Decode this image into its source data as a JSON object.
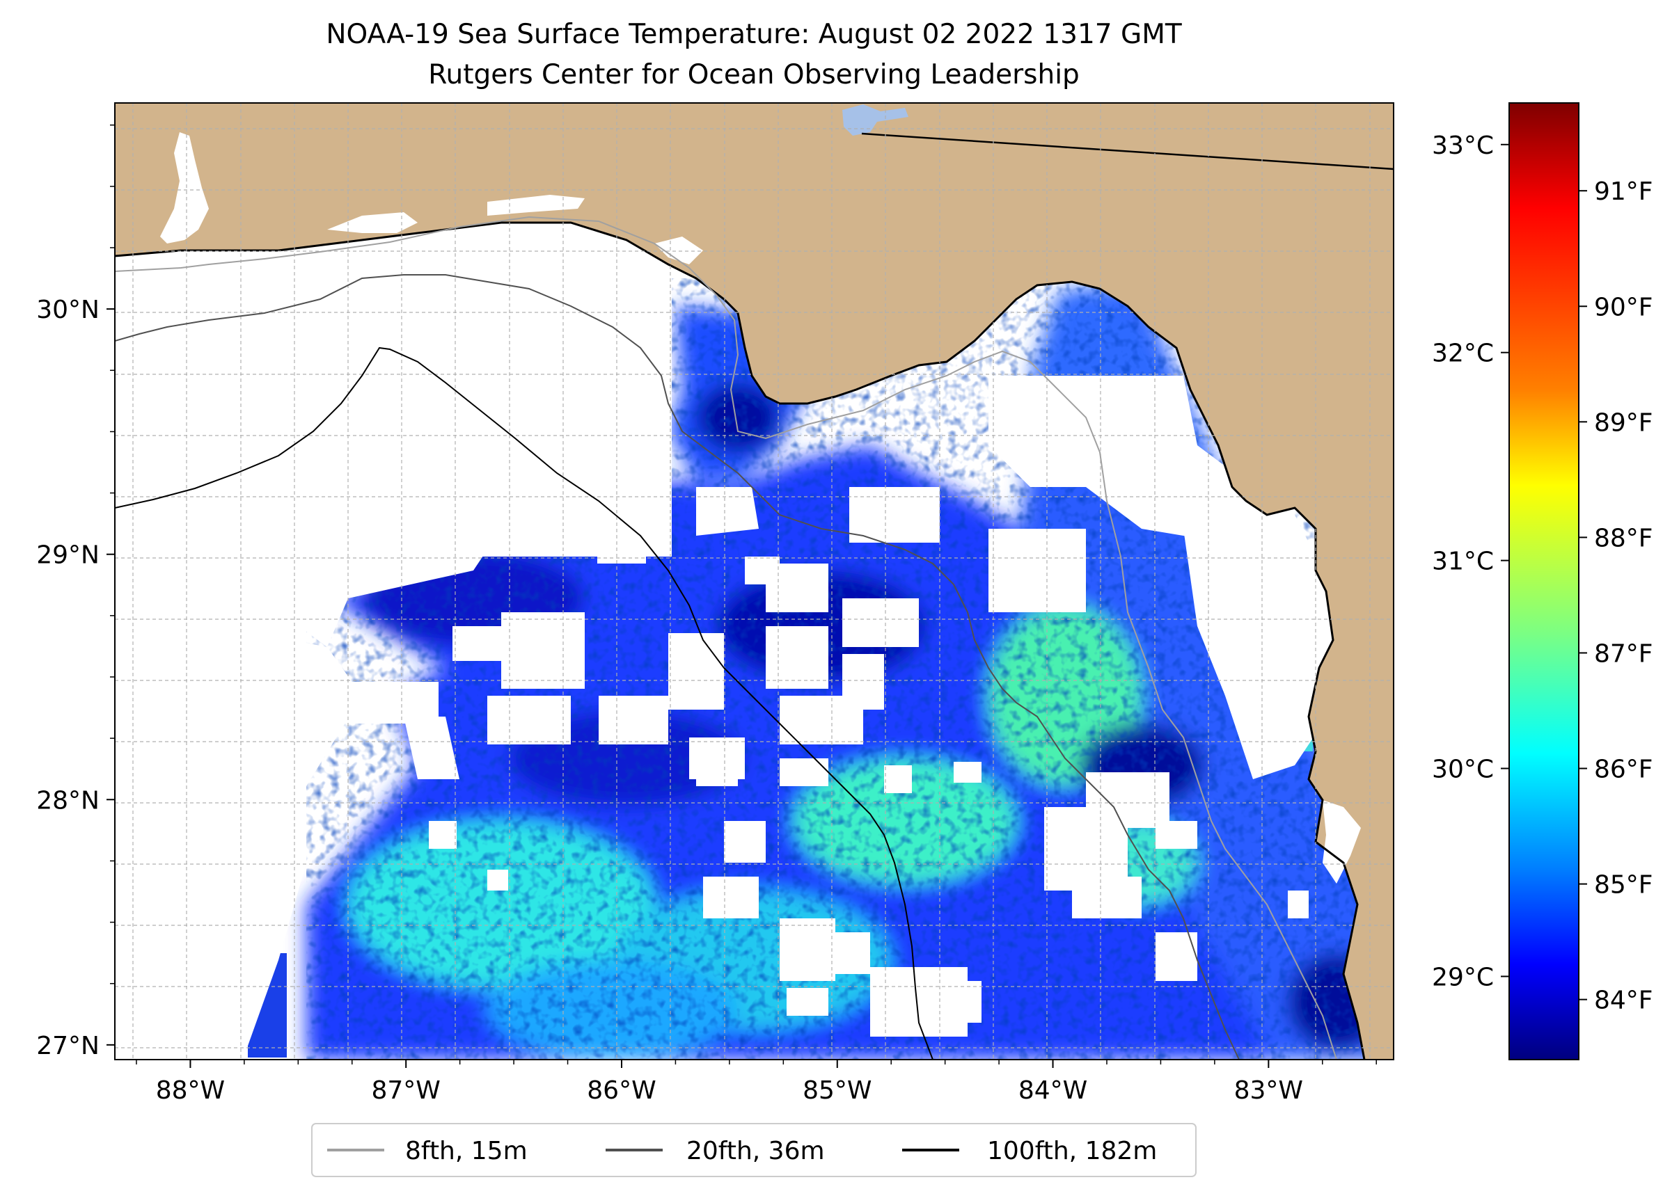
{
  "title": {
    "line1": "NOAA-19 Sea Surface Temperature: August 02 2022 1317 GMT",
    "line2": "Rutgers Center for Ocean Observing Leadership"
  },
  "map": {
    "lon_range": [
      -88.35,
      -82.42
    ],
    "lat_range": [
      26.94,
      30.84
    ],
    "x_ticks": [
      {
        "lon": -88,
        "label": "88°W"
      },
      {
        "lon": -87,
        "label": "87°W"
      },
      {
        "lon": -86,
        "label": "86°W"
      },
      {
        "lon": -85,
        "label": "85°W"
      },
      {
        "lon": -84,
        "label": "84°W"
      },
      {
        "lon": -83,
        "label": "83°W"
      }
    ],
    "y_ticks": [
      {
        "lat": 30,
        "label": "30°N"
      },
      {
        "lat": 29,
        "label": "29°N"
      },
      {
        "lat": 28,
        "label": "28°N"
      },
      {
        "lat": 27,
        "label": "27°N"
      }
    ],
    "colors": {
      "land": "#d2b48c",
      "coastline": "#000000",
      "lake": "#a6c1e8",
      "grid": "#b0b0b0",
      "no_data": "#ffffff"
    }
  },
  "colorbar": {
    "range_c": [
      28.6,
      33.2
    ],
    "celsius_ticks": [
      {
        "value": 29,
        "label": "29°C"
      },
      {
        "value": 30,
        "label": "30°C"
      },
      {
        "value": 31,
        "label": "31°C"
      },
      {
        "value": 32,
        "label": "32°C"
      },
      {
        "value": 33,
        "label": "33°C"
      }
    ],
    "fahrenheit_ticks": [
      {
        "value": 84,
        "label": "84°F"
      },
      {
        "value": 85,
        "label": "85°F"
      },
      {
        "value": 86,
        "label": "86°F"
      },
      {
        "value": 87,
        "label": "87°F"
      },
      {
        "value": 88,
        "label": "88°F"
      },
      {
        "value": 89,
        "label": "89°F"
      },
      {
        "value": 90,
        "label": "90°F"
      },
      {
        "value": 91,
        "label": "91°F"
      }
    ],
    "colormap": [
      "#00007f",
      "#0000ff",
      "#007fff",
      "#00ffff",
      "#7fff7f",
      "#ffff00",
      "#ff7f00",
      "#ff0000",
      "#7f0000"
    ]
  },
  "legend": {
    "items": [
      {
        "label": "8fth, 15m",
        "color": "#a0a0a0"
      },
      {
        "label": "20fth, 36m",
        "color": "#505050"
      },
      {
        "label": "100fth, 182m",
        "color": "#000000"
      }
    ]
  }
}
